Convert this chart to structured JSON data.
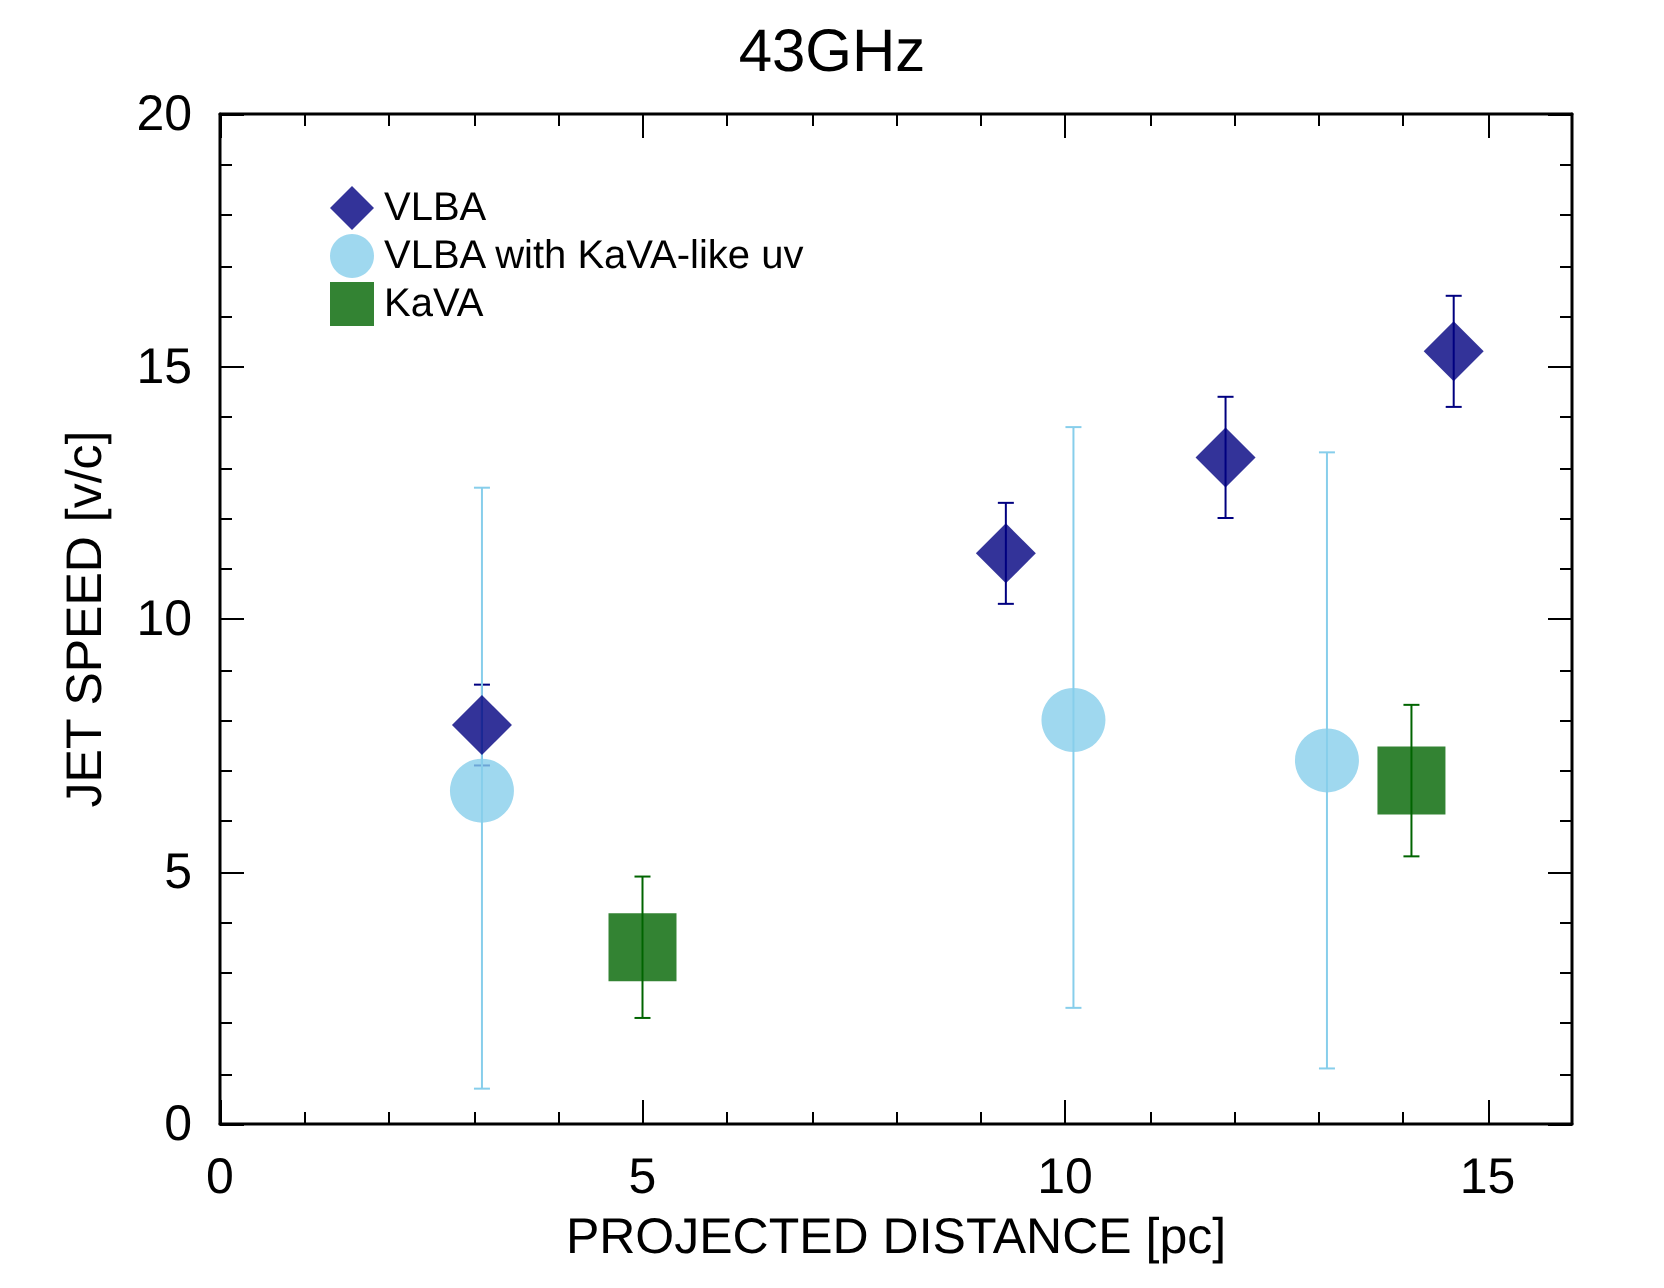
{
  "chart_data": {
    "type": "scatter",
    "title": "43GHz",
    "xlabel": "PROJECTED DISTANCE [pc]",
    "ylabel": "JET SPEED [v/c]",
    "xlim": [
      0,
      16
    ],
    "xticks": [
      0,
      5,
      10,
      15
    ],
    "ylim": [
      0,
      20
    ],
    "yticks": [
      0,
      5,
      10,
      15,
      20
    ],
    "grid": false,
    "legend": "top left",
    "series": [
      {
        "name": "VLBA",
        "color": "#000080",
        "marker": "diamond",
        "x": [
          3.1,
          9.3,
          11.9,
          14.6
        ],
        "values": [
          7.9,
          11.3,
          13.2,
          15.3
        ],
        "errors": [
          [
            7.1,
            8.7
          ],
          [
            10.3,
            12.3
          ],
          [
            12.0,
            14.4
          ],
          [
            14.2,
            16.4
          ]
        ]
      },
      {
        "name": "VLBA with KaVA-like uv",
        "color": "#87ceeb",
        "marker": "circle",
        "x": [
          3.1,
          10.1,
          13.1
        ],
        "values": [
          6.6,
          8.0,
          7.2
        ],
        "errors": [
          [
            0.7,
            12.6
          ],
          [
            2.3,
            13.8
          ],
          [
            1.1,
            13.3
          ]
        ]
      },
      {
        "name": "KaVA",
        "color": "#006400",
        "marker": "square",
        "x": [
          5.0,
          14.1
        ],
        "values": [
          3.5,
          6.8
        ],
        "errors": [
          [
            2.1,
            4.9
          ],
          [
            5.3,
            8.3
          ]
        ]
      }
    ]
  }
}
